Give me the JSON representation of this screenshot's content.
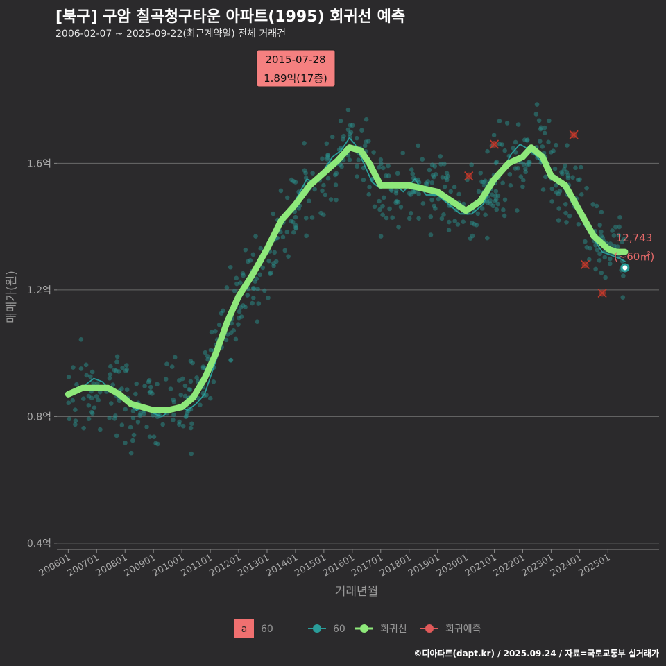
{
  "header": {
    "title": "[북구] 구암 칠곡청구타운 아파트(1995) 회귀선 예측",
    "subtitle": "2006-02-07 ~ 2025-09-22(최근계약일) 전체 거래건"
  },
  "footer": {
    "credit": "©디아파트(dapt.kr) / 2025.09.24 / 자료=국토교통부 실거래가"
  },
  "callout": {
    "date": "2015-07-28",
    "value": "1.89억(17층)"
  },
  "end_label": {
    "count": "12,743",
    "area": "(~60㎡)"
  },
  "legend": {
    "box_letter": "a",
    "box_label": "60",
    "items": [
      {
        "label": "60",
        "color": "#2a9d9a"
      },
      {
        "label": "회귀선",
        "color": "#8ee87a"
      },
      {
        "label": "회귀예측",
        "color": "#e05a5a"
      }
    ]
  },
  "chart_data": {
    "type": "line",
    "xlabel": "거래년월",
    "ylabel": "매매가(원)",
    "ylim": [
      0.38,
      1.98
    ],
    "yticks": [
      {
        "value": 0.4,
        "label": "0.4억"
      },
      {
        "value": 0.8,
        "label": "0.8억"
      },
      {
        "value": 1.2,
        "label": "1.2억"
      },
      {
        "value": 1.6,
        "label": "1.6억"
      }
    ],
    "xlim": [
      2005.6,
      2026.8
    ],
    "xticks": [
      {
        "value": 2006.0,
        "label": "200601"
      },
      {
        "value": 2007.0,
        "label": "200701"
      },
      {
        "value": 2008.0,
        "label": "200801"
      },
      {
        "value": 2009.0,
        "label": "200901"
      },
      {
        "value": 2010.0,
        "label": "201001"
      },
      {
        "value": 2011.0,
        "label": "201101"
      },
      {
        "value": 2012.0,
        "label": "201201"
      },
      {
        "value": 2013.0,
        "label": "201301"
      },
      {
        "value": 2014.0,
        "label": "201401"
      },
      {
        "value": 2015.0,
        "label": "201501"
      },
      {
        "value": 2016.0,
        "label": "201601"
      },
      {
        "value": 2017.0,
        "label": "201701"
      },
      {
        "value": 2018.0,
        "label": "201801"
      },
      {
        "value": 2019.0,
        "label": "201901"
      },
      {
        "value": 2020.0,
        "label": "202001"
      },
      {
        "value": 2021.0,
        "label": "202101"
      },
      {
        "value": 2022.0,
        "label": "202201"
      },
      {
        "value": 2023.0,
        "label": "202301"
      },
      {
        "value": 2024.0,
        "label": "202401"
      },
      {
        "value": 2025.0,
        "label": "202501"
      }
    ],
    "series": [
      {
        "name": "회귀선",
        "color": "#8ee87a",
        "x": [
          2006.0,
          2006.5,
          2007.0,
          2007.4,
          2007.8,
          2008.2,
          2008.6,
          2009.0,
          2009.5,
          2010.0,
          2010.4,
          2010.8,
          2011.2,
          2011.6,
          2012.0,
          2012.5,
          2013.0,
          2013.5,
          2014.0,
          2014.5,
          2015.0,
          2015.5,
          2015.9,
          2016.3,
          2016.6,
          2017.0,
          2017.5,
          2018.0,
          2018.5,
          2019.0,
          2019.5,
          2020.0,
          2020.5,
          2021.0,
          2021.5,
          2022.0,
          2022.3,
          2022.7,
          2023.0,
          2023.5,
          2024.0,
          2024.5,
          2025.0,
          2025.3,
          2025.6
        ],
        "y": [
          0.87,
          0.89,
          0.89,
          0.89,
          0.87,
          0.84,
          0.83,
          0.82,
          0.82,
          0.83,
          0.86,
          0.92,
          1.0,
          1.1,
          1.18,
          1.25,
          1.33,
          1.42,
          1.47,
          1.53,
          1.57,
          1.61,
          1.65,
          1.64,
          1.6,
          1.53,
          1.53,
          1.53,
          1.52,
          1.51,
          1.48,
          1.45,
          1.48,
          1.55,
          1.6,
          1.62,
          1.65,
          1.62,
          1.56,
          1.53,
          1.45,
          1.37,
          1.33,
          1.32,
          1.32
        ]
      },
      {
        "name": "60",
        "color": "#2a9d9a",
        "x": [
          2006.0,
          2006.3,
          2006.6,
          2006.9,
          2007.2,
          2007.5,
          2007.8,
          2008.1,
          2008.4,
          2008.7,
          2009.0,
          2009.3,
          2009.6,
          2009.9,
          2010.2,
          2010.5,
          2010.8,
          2011.1,
          2011.4,
          2011.7,
          2012.0,
          2012.3,
          2012.6,
          2012.9,
          2013.2,
          2013.5,
          2013.8,
          2014.1,
          2014.4,
          2014.7,
          2015.0,
          2015.3,
          2015.6,
          2015.9,
          2016.1,
          2016.3,
          2016.5,
          2016.7,
          2017.0,
          2017.4,
          2017.8,
          2018.2,
          2018.6,
          2019.0,
          2019.4,
          2019.8,
          2020.2,
          2020.6,
          2021.0,
          2021.3,
          2021.6,
          2021.9,
          2022.1,
          2022.4,
          2022.7,
          2023.0,
          2023.3,
          2023.6,
          2023.9,
          2024.2,
          2024.5,
          2024.8,
          2025.1,
          2025.4,
          2025.6
        ],
        "y": [
          0.87,
          0.88,
          0.9,
          0.92,
          0.91,
          0.88,
          0.86,
          0.84,
          0.82,
          0.83,
          0.81,
          0.8,
          0.82,
          0.83,
          0.82,
          0.84,
          0.87,
          0.95,
          1.03,
          1.12,
          1.16,
          1.22,
          1.27,
          1.3,
          1.36,
          1.42,
          1.45,
          1.5,
          1.55,
          1.54,
          1.58,
          1.62,
          1.64,
          1.68,
          1.66,
          1.62,
          1.58,
          1.54,
          1.52,
          1.54,
          1.51,
          1.55,
          1.5,
          1.5,
          1.47,
          1.44,
          1.44,
          1.47,
          1.54,
          1.58,
          1.63,
          1.66,
          1.65,
          1.63,
          1.6,
          1.56,
          1.54,
          1.5,
          1.46,
          1.4,
          1.36,
          1.32,
          1.31,
          1.3,
          1.29
        ]
      }
    ],
    "predictions": [
      {
        "x": 2020.1,
        "y": 1.56
      },
      {
        "x": 2021.0,
        "y": 1.66
      },
      {
        "x": 2023.8,
        "y": 1.69
      },
      {
        "x": 2024.2,
        "y": 1.28
      },
      {
        "x": 2024.8,
        "y": 1.19
      }
    ],
    "latest_point": {
      "x": 2025.6,
      "y": 1.27
    },
    "callout_point": {
      "x": 2015.57,
      "y": 1.89
    }
  }
}
